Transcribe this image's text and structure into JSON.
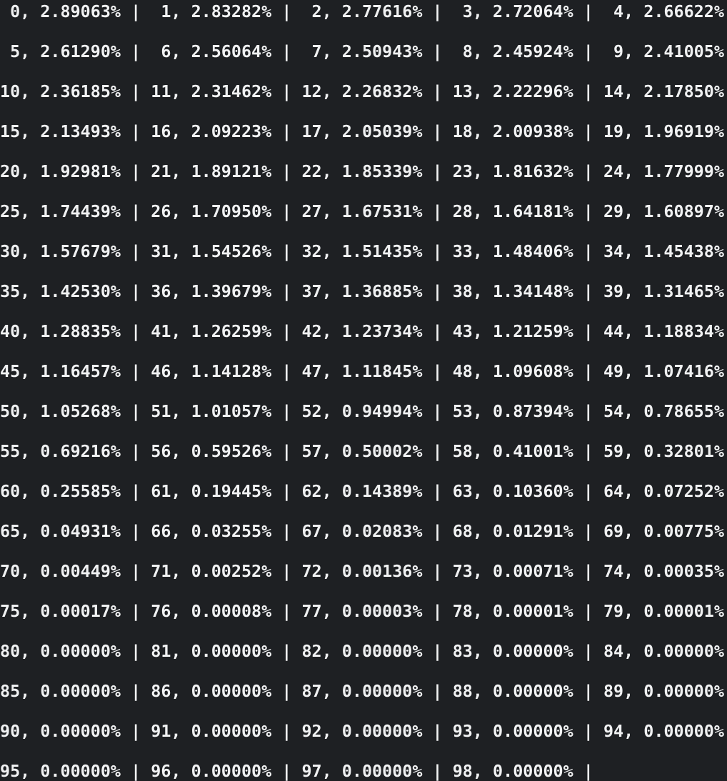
{
  "terminal": {
    "background_color": "#1e2023",
    "text_color": "#f0f1f2",
    "cell_format": "index, value",
    "separator": " | ",
    "index_pad_width": 2,
    "rows": [
      {
        "cells": [
          [
            "0",
            "2.89063%"
          ],
          [
            "1",
            "2.83282%"
          ],
          [
            "2",
            "2.77616%"
          ],
          [
            "3",
            "2.72064%"
          ],
          [
            "4",
            "2.66622%"
          ]
        ],
        "trailing_separator": false
      },
      {
        "cells": [
          [
            "5",
            "2.61290%"
          ],
          [
            "6",
            "2.56064%"
          ],
          [
            "7",
            "2.50943%"
          ],
          [
            "8",
            "2.45924%"
          ],
          [
            "9",
            "2.41005%"
          ]
        ],
        "trailing_separator": false
      },
      {
        "cells": [
          [
            "10",
            "2.36185%"
          ],
          [
            "11",
            "2.31462%"
          ],
          [
            "12",
            "2.26832%"
          ],
          [
            "13",
            "2.22296%"
          ],
          [
            "14",
            "2.17850%"
          ]
        ],
        "trailing_separator": false
      },
      {
        "cells": [
          [
            "15",
            "2.13493%"
          ],
          [
            "16",
            "2.09223%"
          ],
          [
            "17",
            "2.05039%"
          ],
          [
            "18",
            "2.00938%"
          ],
          [
            "19",
            "1.96919%"
          ]
        ],
        "trailing_separator": false
      },
      {
        "cells": [
          [
            "20",
            "1.92981%"
          ],
          [
            "21",
            "1.89121%"
          ],
          [
            "22",
            "1.85339%"
          ],
          [
            "23",
            "1.81632%"
          ],
          [
            "24",
            "1.77999%"
          ]
        ],
        "trailing_separator": false
      },
      {
        "cells": [
          [
            "25",
            "1.74439%"
          ],
          [
            "26",
            "1.70950%"
          ],
          [
            "27",
            "1.67531%"
          ],
          [
            "28",
            "1.64181%"
          ],
          [
            "29",
            "1.60897%"
          ]
        ],
        "trailing_separator": false
      },
      {
        "cells": [
          [
            "30",
            "1.57679%"
          ],
          [
            "31",
            "1.54526%"
          ],
          [
            "32",
            "1.51435%"
          ],
          [
            "33",
            "1.48406%"
          ],
          [
            "34",
            "1.45438%"
          ]
        ],
        "trailing_separator": false
      },
      {
        "cells": [
          [
            "35",
            "1.42530%"
          ],
          [
            "36",
            "1.39679%"
          ],
          [
            "37",
            "1.36885%"
          ],
          [
            "38",
            "1.34148%"
          ],
          [
            "39",
            "1.31465%"
          ]
        ],
        "trailing_separator": false
      },
      {
        "cells": [
          [
            "40",
            "1.28835%"
          ],
          [
            "41",
            "1.26259%"
          ],
          [
            "42",
            "1.23734%"
          ],
          [
            "43",
            "1.21259%"
          ],
          [
            "44",
            "1.18834%"
          ]
        ],
        "trailing_separator": false
      },
      {
        "cells": [
          [
            "45",
            "1.16457%"
          ],
          [
            "46",
            "1.14128%"
          ],
          [
            "47",
            "1.11845%"
          ],
          [
            "48",
            "1.09608%"
          ],
          [
            "49",
            "1.07416%"
          ]
        ],
        "trailing_separator": false
      },
      {
        "cells": [
          [
            "50",
            "1.05268%"
          ],
          [
            "51",
            "1.01057%"
          ],
          [
            "52",
            "0.94994%"
          ],
          [
            "53",
            "0.87394%"
          ],
          [
            "54",
            "0.78655%"
          ]
        ],
        "trailing_separator": false
      },
      {
        "cells": [
          [
            "55",
            "0.69216%"
          ],
          [
            "56",
            "0.59526%"
          ],
          [
            "57",
            "0.50002%"
          ],
          [
            "58",
            "0.41001%"
          ],
          [
            "59",
            "0.32801%"
          ]
        ],
        "trailing_separator": false
      },
      {
        "cells": [
          [
            "60",
            "0.25585%"
          ],
          [
            "61",
            "0.19445%"
          ],
          [
            "62",
            "0.14389%"
          ],
          [
            "63",
            "0.10360%"
          ],
          [
            "64",
            "0.07252%"
          ]
        ],
        "trailing_separator": false
      },
      {
        "cells": [
          [
            "65",
            "0.04931%"
          ],
          [
            "66",
            "0.03255%"
          ],
          [
            "67",
            "0.02083%"
          ],
          [
            "68",
            "0.01291%"
          ],
          [
            "69",
            "0.00775%"
          ]
        ],
        "trailing_separator": false
      },
      {
        "cells": [
          [
            "70",
            "0.00449%"
          ],
          [
            "71",
            "0.00252%"
          ],
          [
            "72",
            "0.00136%"
          ],
          [
            "73",
            "0.00071%"
          ],
          [
            "74",
            "0.00035%"
          ]
        ],
        "trailing_separator": false
      },
      {
        "cells": [
          [
            "75",
            "0.00017%"
          ],
          [
            "76",
            "0.00008%"
          ],
          [
            "77",
            "0.00003%"
          ],
          [
            "78",
            "0.00001%"
          ],
          [
            "79",
            "0.00001%"
          ]
        ],
        "trailing_separator": false
      },
      {
        "cells": [
          [
            "80",
            "0.00000%"
          ],
          [
            "81",
            "0.00000%"
          ],
          [
            "82",
            "0.00000%"
          ],
          [
            "83",
            "0.00000%"
          ],
          [
            "84",
            "0.00000%"
          ]
        ],
        "trailing_separator": false
      },
      {
        "cells": [
          [
            "85",
            "0.00000%"
          ],
          [
            "86",
            "0.00000%"
          ],
          [
            "87",
            "0.00000%"
          ],
          [
            "88",
            "0.00000%"
          ],
          [
            "89",
            "0.00000%"
          ]
        ],
        "trailing_separator": false
      },
      {
        "cells": [
          [
            "90",
            "0.00000%"
          ],
          [
            "91",
            "0.00000%"
          ],
          [
            "92",
            "0.00000%"
          ],
          [
            "93",
            "0.00000%"
          ],
          [
            "94",
            "0.00000%"
          ]
        ],
        "trailing_separator": false
      },
      {
        "cells": [
          [
            "95",
            "0.00000%"
          ],
          [
            "96",
            "0.00000%"
          ],
          [
            "97",
            "0.00000%"
          ],
          [
            "98",
            "0.00000%"
          ]
        ],
        "trailing_separator": true
      }
    ]
  }
}
